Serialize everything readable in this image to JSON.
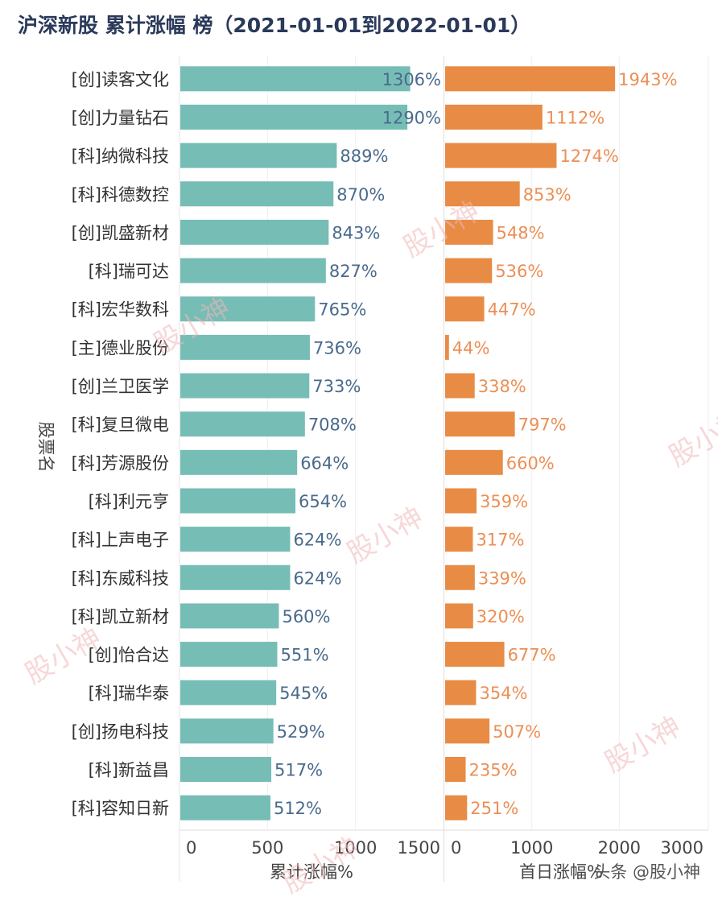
{
  "chart_data": {
    "type": "bar",
    "orientation": "horizontal",
    "title": "沪深新股 累计涨幅 榜（2021-01-01到2022-01-01）",
    "ylabel": "股票名",
    "categories": [
      "[创]读客文化",
      "[创]力量钻石",
      "[科]纳微科技",
      "[科]科德数控",
      "[创]凯盛新材",
      "[科]瑞可达",
      "[科]宏华数科",
      "[主]德业股份",
      "[创]兰卫医学",
      "[科]复旦微电",
      "[科]芳源股份",
      "[科]利元亨",
      "[科]上声电子",
      "[科]东威科技",
      "[科]凯立新材",
      "[创]怡合达",
      "[科]瑞华泰",
      "[创]扬电科技",
      "[科]新益昌",
      "[科]容知日新"
    ],
    "series": [
      {
        "name": "累计涨幅%",
        "xlabel": "累计涨幅%",
        "color": "#76bdb6",
        "xlim": [
          0,
          1500
        ],
        "ticks": [
          "0",
          "500",
          "1000",
          "1500"
        ],
        "values": [
          1306,
          1290,
          889,
          870,
          843,
          827,
          765,
          736,
          733,
          708,
          664,
          654,
          624,
          624,
          560,
          551,
          545,
          529,
          517,
          512
        ]
      },
      {
        "name": "首日涨幅%",
        "xlabel": "首日涨幅%",
        "color": "#e88c45",
        "xlim": [
          0,
          3000
        ],
        "ticks": [
          "0",
          "1000",
          "2000",
          "3000"
        ],
        "values": [
          1943,
          1112,
          1274,
          853,
          548,
          536,
          447,
          44,
          338,
          797,
          660,
          359,
          317,
          339,
          320,
          677,
          354,
          507,
          235,
          251
        ]
      }
    ],
    "label_suffix": "%",
    "grid": true
  },
  "watermarks": [
    "股小神",
    "头条 @股小神"
  ]
}
